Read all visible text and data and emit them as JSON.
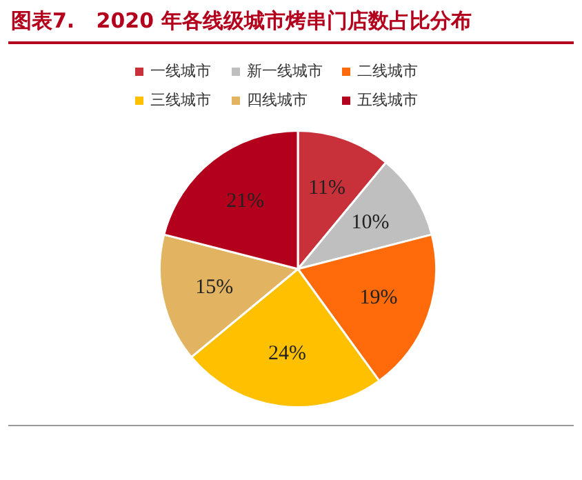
{
  "chart_data": {
    "type": "pie",
    "title": "图表7.   2020 年各线级城市烤串门店数占比分布",
    "categories": [
      "一线城市",
      "新一线城市",
      "二线城市",
      "三线城市",
      "四线城市",
      "五线城市"
    ],
    "values": [
      11,
      10,
      19,
      24,
      15,
      21
    ],
    "colors": [
      "#c8313a",
      "#bfbfbf",
      "#ff6a0a",
      "#ffc000",
      "#e2b462",
      "#b3001c"
    ],
    "value_labels": [
      "11%",
      "10%",
      "19%",
      "24%",
      "15%",
      "21%"
    ],
    "legend": "top"
  }
}
